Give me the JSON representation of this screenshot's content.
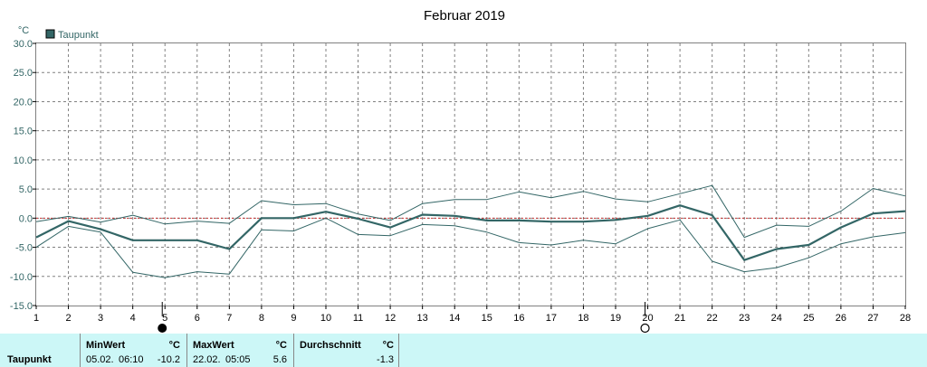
{
  "chart_data": {
    "type": "line",
    "title": "Februar 2019",
    "unit": "°C",
    "legend": [
      "Taupunkt"
    ],
    "x": [
      1,
      2,
      3,
      4,
      5,
      6,
      7,
      8,
      9,
      10,
      11,
      12,
      13,
      14,
      15,
      16,
      17,
      18,
      19,
      20,
      21,
      22,
      23,
      24,
      25,
      26,
      27,
      28
    ],
    "xticks": [
      "1",
      "2",
      "3",
      "4",
      "5",
      "6",
      "7",
      "8",
      "9",
      "10",
      "11",
      "12",
      "13",
      "14",
      "15",
      "16",
      "17",
      "18",
      "19",
      "20",
      "21",
      "22",
      "23",
      "24",
      "25",
      "26",
      "27",
      "28"
    ],
    "ylim": [
      -15,
      30
    ],
    "yticks": [
      "30.0",
      "25.0",
      "20.0",
      "15.0",
      "10.0",
      "5.0",
      "0.0",
      "-5.0",
      "-10.0",
      "-15.0"
    ],
    "grid": true,
    "zero_line": true,
    "series": [
      {
        "name": "Taupunkt",
        "role": "mean",
        "color": "#336666",
        "values": [
          -3.3,
          -0.5,
          -1.9,
          -3.8,
          -3.8,
          -3.8,
          -5.3,
          0.0,
          0.0,
          1.1,
          -0.1,
          -1.6,
          0.6,
          0.4,
          -0.4,
          -0.4,
          -0.6,
          -0.6,
          -0.3,
          0.4,
          2.2,
          0.5,
          -7.2,
          -5.3,
          -4.6,
          -1.6,
          0.8,
          1.2
        ]
      },
      {
        "role": "max",
        "color": "#336666",
        "values": [
          -0.6,
          0.3,
          -0.7,
          0.5,
          -1.0,
          -0.5,
          -0.9,
          3.0,
          2.3,
          2.5,
          0.7,
          -0.4,
          2.5,
          3.2,
          3.2,
          4.5,
          3.5,
          4.6,
          3.3,
          2.8,
          4.2,
          5.6,
          -3.3,
          -1.2,
          -1.4,
          1.2,
          5.1,
          3.8
        ]
      },
      {
        "role": "min",
        "color": "#336666",
        "values": [
          -5.0,
          -1.4,
          -2.4,
          -9.3,
          -10.2,
          -9.2,
          -9.6,
          -2.0,
          -2.2,
          0.0,
          -2.8,
          -3.0,
          -1.1,
          -1.3,
          -2.4,
          -4.2,
          -4.6,
          -3.8,
          -4.4,
          -1.8,
          -0.3,
          -7.4,
          -9.2,
          -8.5,
          -6.8,
          -4.4,
          -3.2,
          -2.5
        ]
      }
    ],
    "moon_phases": [
      {
        "day": 5,
        "phase": "new"
      },
      {
        "day": 20,
        "phase": "full"
      }
    ]
  },
  "colors": {
    "line": "#336666",
    "zero_line": "#cc3333",
    "grid": "#808080",
    "axis_text": "#336666",
    "stats_bg": "#ccf7f7"
  },
  "stats": {
    "row_label": "Taupunkt",
    "min": {
      "label": "MinWert",
      "unit": "°C",
      "date": "05.02.",
      "time": "06:10",
      "value": "-10.2"
    },
    "max": {
      "label": "MaxWert",
      "unit": "°C",
      "date": "22.02.",
      "time": "05:05",
      "value": "5.6"
    },
    "avg": {
      "label": "Durchschnitt",
      "unit": "°C",
      "value": "-1.3"
    }
  }
}
